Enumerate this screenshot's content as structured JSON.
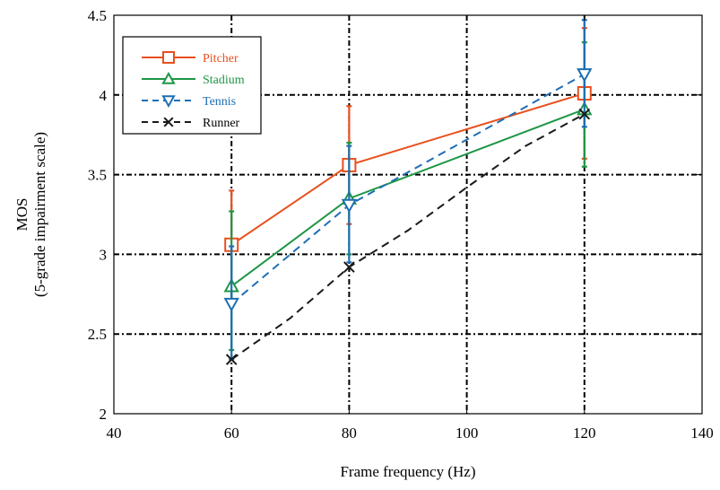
{
  "chart_data": {
    "type": "line",
    "title": "",
    "xlabel": "Frame frequency (Hz)",
    "ylabel_line1": "MOS",
    "ylabel_line2": "(5-grade  impairment scale)",
    "xlim": [
      40,
      140
    ],
    "ylim": [
      2,
      4.5
    ],
    "xticks": [
      40,
      60,
      80,
      100,
      120,
      140
    ],
    "yticks": [
      2,
      2.5,
      3,
      3.5,
      4,
      4.5
    ],
    "xtick_labels": [
      "40",
      "60",
      "80",
      "100",
      "120",
      "140"
    ],
    "ytick_labels": [
      "2",
      "2.5",
      "3",
      "3.5",
      "4",
      "4.5"
    ],
    "grid": true,
    "legend_position": "top-left",
    "series": [
      {
        "name": "Pitcher",
        "color": "#E8501E",
        "marker": "square",
        "line": "solid",
        "x": [
          60,
          80,
          120
        ],
        "y": [
          3.06,
          3.56,
          4.01
        ],
        "err_low": [
          2.72,
          3.19,
          3.6
        ],
        "err_high": [
          3.4,
          3.93,
          4.42
        ]
      },
      {
        "name": "Stadium",
        "color": "#1E9646",
        "marker": "triangle-up",
        "line": "solid",
        "x": [
          60,
          80,
          120
        ],
        "y": [
          2.8,
          3.35,
          3.91
        ],
        "err_low": [
          2.4,
          3.0,
          3.55
        ],
        "err_high": [
          3.27,
          3.7,
          4.33
        ]
      },
      {
        "name": "Tennis",
        "color": "#1E6EB4",
        "marker": "triangle-down",
        "line": "dashed",
        "x": [
          60,
          80,
          120
        ],
        "y": [
          2.69,
          3.31,
          4.13
        ],
        "err_low": [
          2.34,
          2.95,
          3.8
        ],
        "err_high": [
          3.05,
          3.68,
          4.47
        ]
      },
      {
        "name": "Runner",
        "color": "#1a1a1a",
        "marker": "x",
        "line": "dashed",
        "x": [
          60,
          70,
          80,
          90,
          100,
          110,
          120
        ],
        "y": [
          2.34,
          2.6,
          2.92,
          3.15,
          3.42,
          3.68,
          3.88
        ]
      }
    ]
  }
}
